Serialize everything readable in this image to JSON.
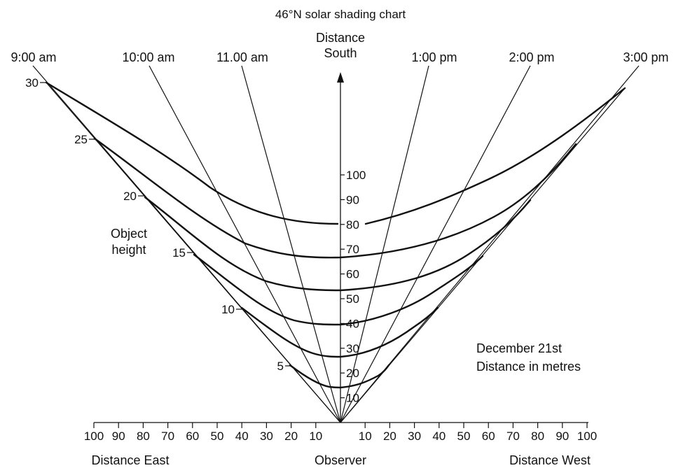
{
  "title": "46°N solar shading chart",
  "hour_lines": [
    {
      "label": "9:00 am"
    },
    {
      "label": "10:00 am"
    },
    {
      "label": "11.00 am"
    },
    {
      "label": "1:00 pm"
    },
    {
      "label": "2:00 pm"
    },
    {
      "label": "3:00 pm"
    }
  ],
  "south_axis": {
    "label_line1": "Distance",
    "label_line2": "South",
    "ticks": [
      "10",
      "20",
      "30",
      "40",
      "50",
      "60",
      "70",
      "80",
      "90",
      "100"
    ]
  },
  "east_axis": {
    "label": "Distance East",
    "ticks": [
      "100",
      "90",
      "80",
      "70",
      "60",
      "50",
      "40",
      "30",
      "20",
      "10"
    ]
  },
  "west_axis": {
    "label": "Distance West",
    "ticks": [
      "10",
      "20",
      "30",
      "40",
      "50",
      "60",
      "70",
      "80",
      "90",
      "100"
    ]
  },
  "observer_label": "Observer",
  "object_height": {
    "label_line1": "Object",
    "label_line2": "height",
    "values": [
      "5",
      "10",
      "15",
      "20",
      "25",
      "30"
    ]
  },
  "notes": {
    "line1": "December 21st",
    "line2": "Distance in metres"
  },
  "colors": {
    "ink": "#111111",
    "background": "#ffffff"
  }
}
